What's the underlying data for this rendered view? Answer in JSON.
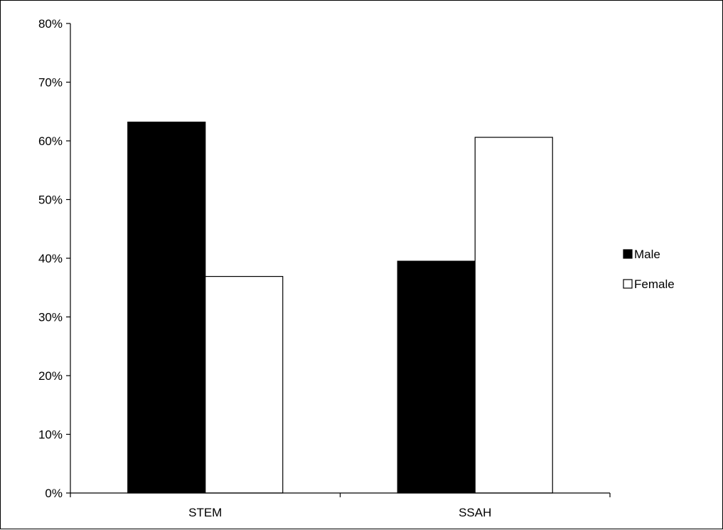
{
  "chart_data": {
    "type": "bar",
    "title": "",
    "xlabel": "",
    "ylabel": "",
    "categories": [
      "STEM",
      "SSAH"
    ],
    "series": [
      {
        "name": "Male",
        "values": [
          63.2,
          39.5
        ],
        "color": "#000000"
      },
      {
        "name": "Female",
        "values": [
          36.9,
          60.6
        ],
        "color": "#ffffff"
      }
    ],
    "ylim": [
      0,
      80
    ],
    "yticks": [
      0,
      10,
      20,
      30,
      40,
      50,
      60,
      70,
      80
    ],
    "ytick_labels": [
      "0%",
      "10%",
      "20%",
      "30%",
      "40%",
      "50%",
      "60%",
      "70%",
      "80%"
    ],
    "grid": false,
    "legend_position": "right"
  }
}
